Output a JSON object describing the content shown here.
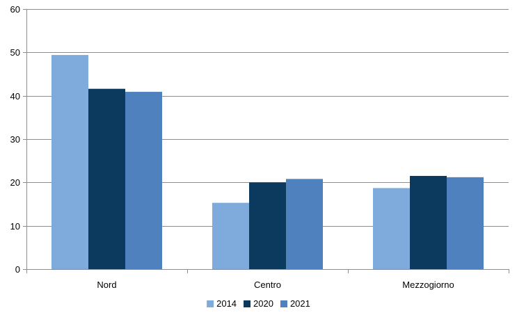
{
  "chart_data": {
    "type": "bar",
    "categories": [
      "Nord",
      "Centro",
      "Mezzogiorno"
    ],
    "series": [
      {
        "name": "2014",
        "values": [
          49.4,
          15.3,
          18.7
        ],
        "color": "#7fabdc"
      },
      {
        "name": "2020",
        "values": [
          41.6,
          20.0,
          21.5
        ],
        "color": "#0b3a5e"
      },
      {
        "name": "2021",
        "values": [
          40.9,
          20.8,
          21.2
        ],
        "color": "#4e81be"
      }
    ],
    "title": "",
    "xlabel": "",
    "ylabel": "",
    "ylim": [
      0,
      60
    ],
    "yticks": [
      0,
      10,
      20,
      30,
      40,
      50,
      60
    ],
    "grid": true,
    "legend_position": "bottom-center"
  }
}
